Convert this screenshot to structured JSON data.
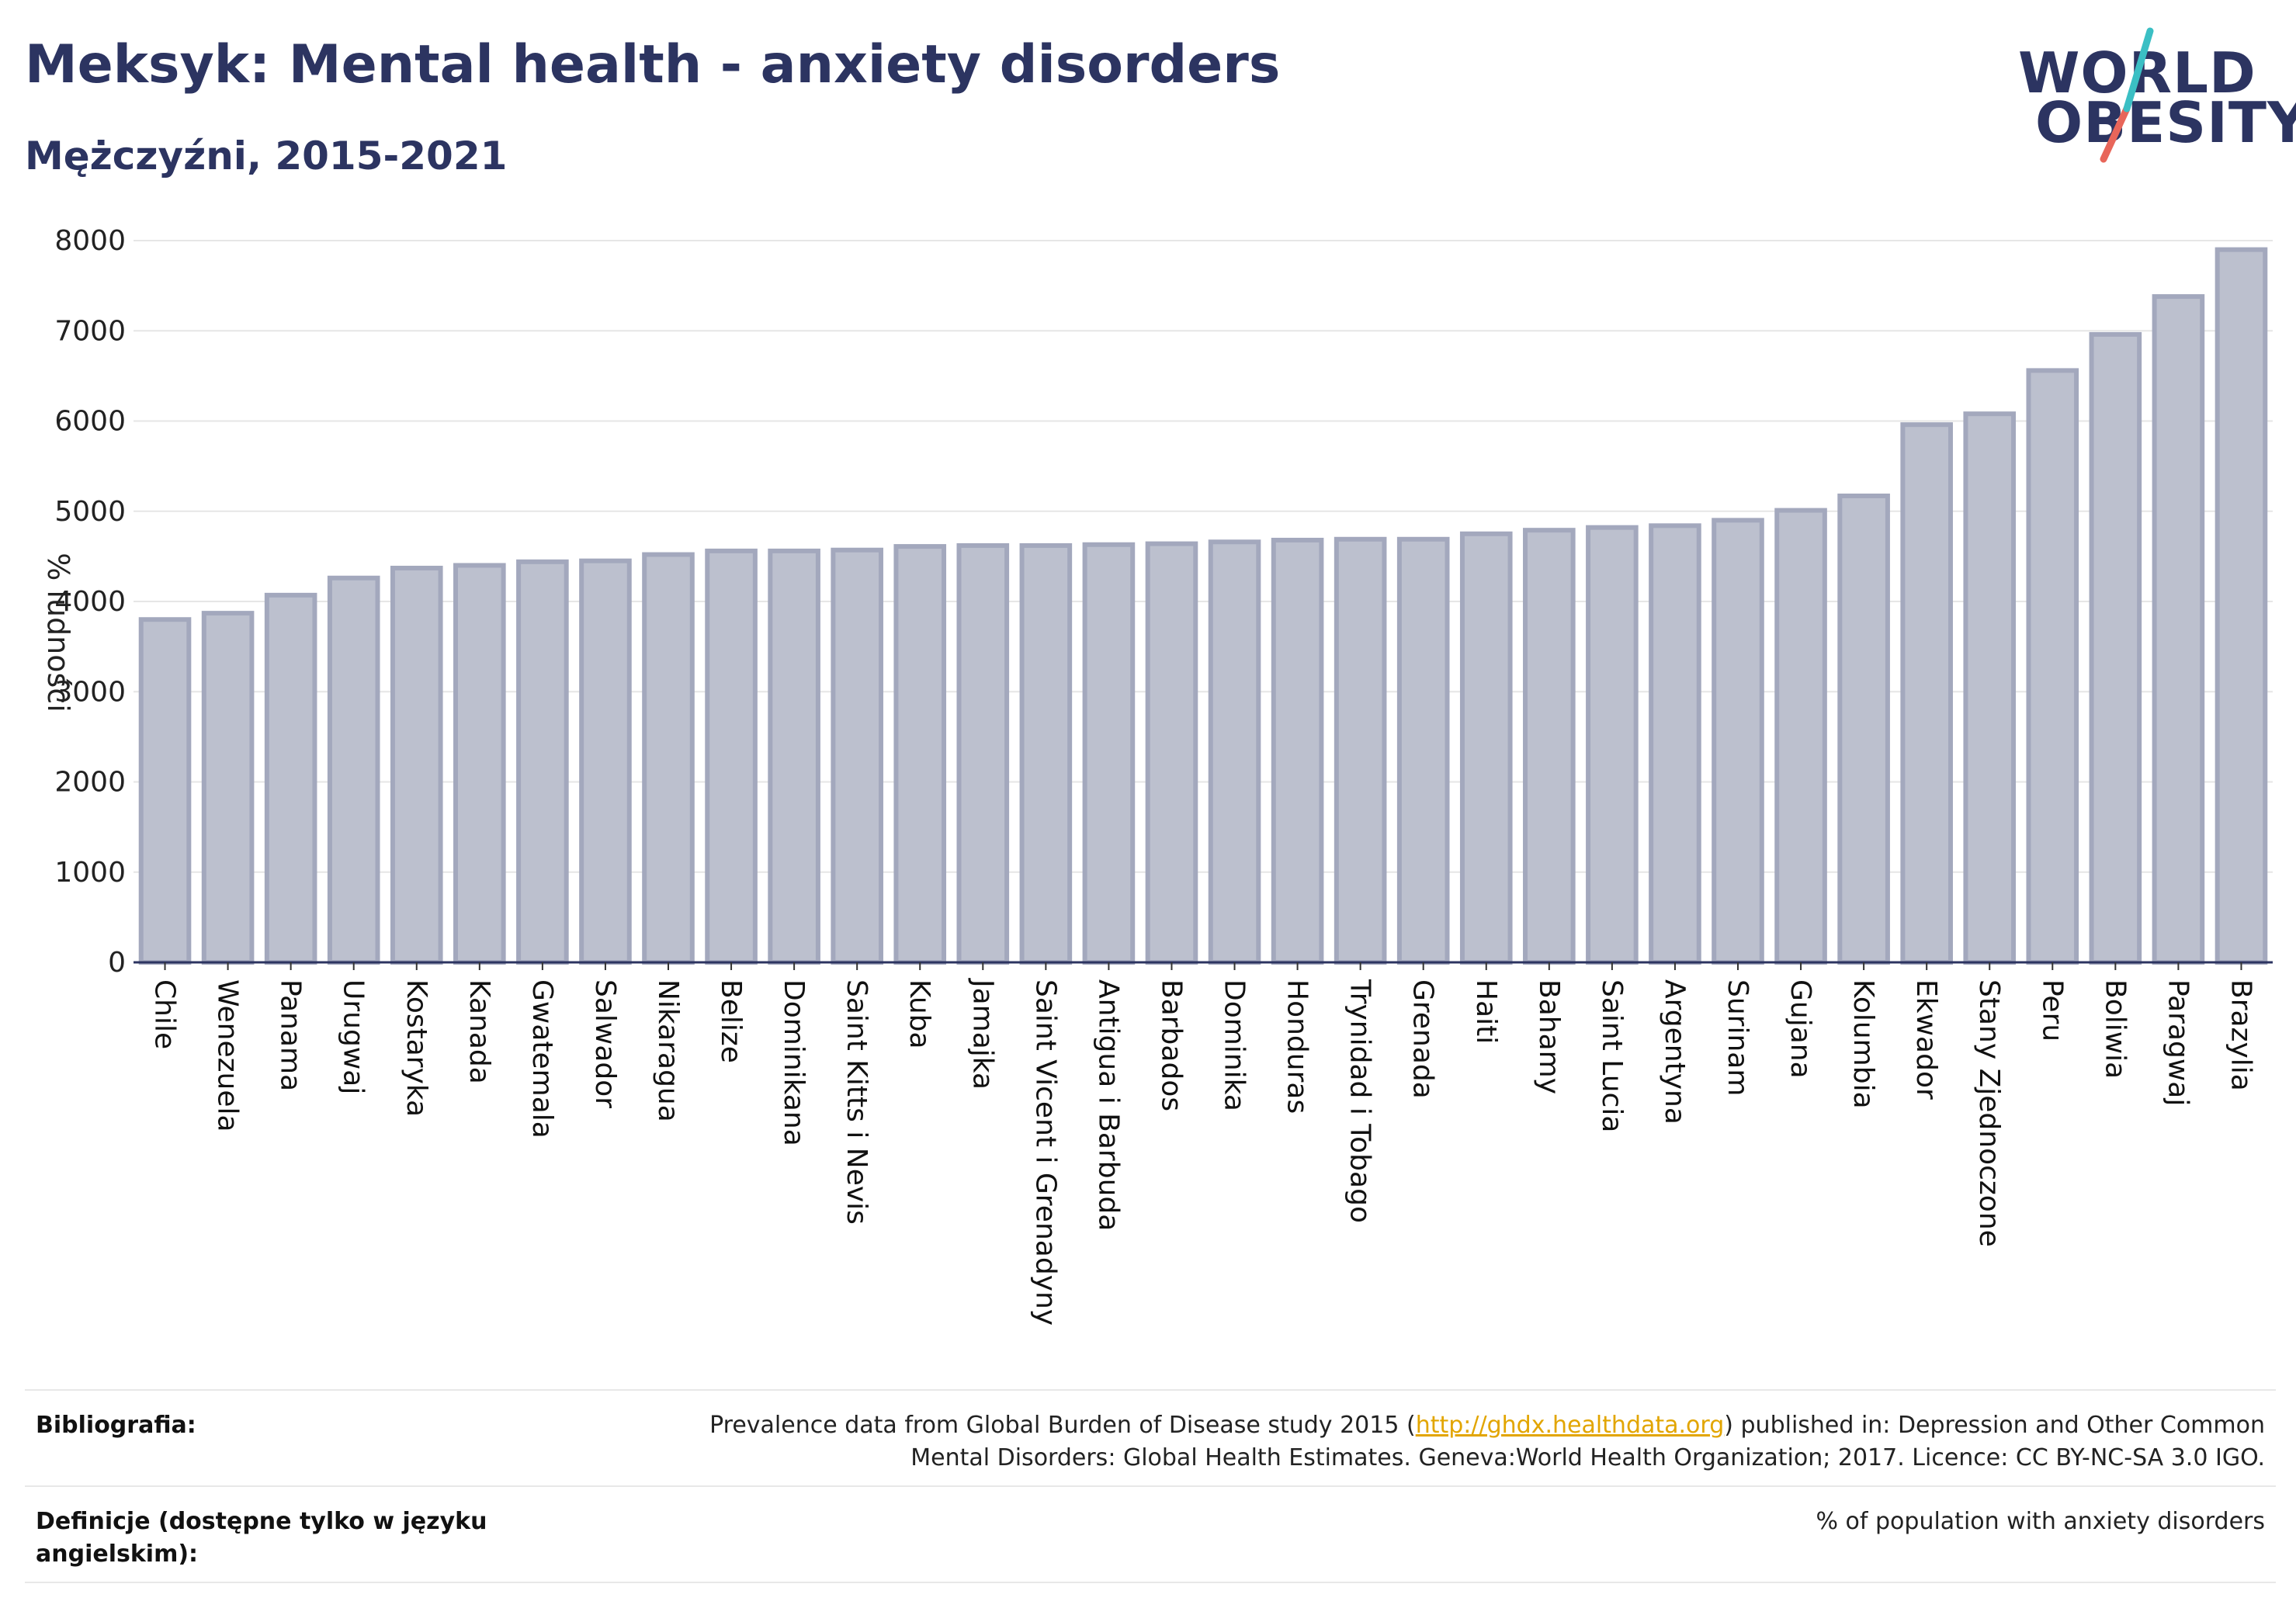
{
  "header": {
    "title": "Meksyk: Mental health - anxiety disorders",
    "subtitle": "Mężczyźni, 2015-2021"
  },
  "logo": {
    "line1": "WORLD",
    "line2": "OBESITY"
  },
  "colors": {
    "title": "#2c3461",
    "bar_fill": "#bcc0ce",
    "bar_stroke": "#a3a8bd",
    "grid": "#e6e6e6",
    "axis": "#2c3461",
    "logo_slash_top": "#3bbfc4",
    "logo_slash_bottom": "#e8665a",
    "link": "#e2a500"
  },
  "chart_data": {
    "type": "bar",
    "ylabel": "% ludności",
    "ylim": [
      0,
      8000
    ],
    "yticks": [
      0,
      1000,
      2000,
      3000,
      4000,
      5000,
      6000,
      7000,
      8000
    ],
    "grid": true,
    "categories": [
      "Chile",
      "Wenezuela",
      "Panama",
      "Urugwaj",
      "Kostaryka",
      "Kanada",
      "Gwatemala",
      "Salwador",
      "Nikaragua",
      "Belize",
      "Dominikana",
      "Saint Kitts i Nevis",
      "Kuba",
      "Jamajka",
      "Saint Vicent i Grenadyny",
      "Antigua i Barbuda",
      "Barbados",
      "Dominika",
      "Honduras",
      "Trynidad i Tobago",
      "Grenada",
      "Haiti",
      "Bahamy",
      "Saint Lucia",
      "Argentyna",
      "Surinam",
      "Gujana",
      "Kolumbia",
      "Ekwador",
      "Stany Zjednoczone",
      "Peru",
      "Boliwia",
      "Paragwaj",
      "Brazylia"
    ],
    "values": [
      3800,
      3870,
      4070,
      4260,
      4370,
      4400,
      4440,
      4450,
      4520,
      4560,
      4560,
      4570,
      4610,
      4620,
      4620,
      4630,
      4640,
      4660,
      4680,
      4690,
      4690,
      4750,
      4790,
      4820,
      4840,
      4900,
      5010,
      5170,
      5960,
      6080,
      6560,
      6960,
      7380,
      7900
    ]
  },
  "footer": {
    "bibliography_label": "Bibliografia:",
    "bibliography_pre": "Prevalence data from Global Burden of Disease study 2015 (",
    "bibliography_link": "http://ghdx.healthdata.org",
    "bibliography_post": ") published in: Depression and Other Common",
    "bibliography_line2": "Mental Disorders: Global Health Estimates. Geneva:World Health Organization; 2017. Licence: CC BY-NC-SA 3.0 IGO.",
    "definitions_label": "Definicje (dostępne tylko w języku angielskim):",
    "definitions_value": "% of population with anxiety disorders"
  }
}
